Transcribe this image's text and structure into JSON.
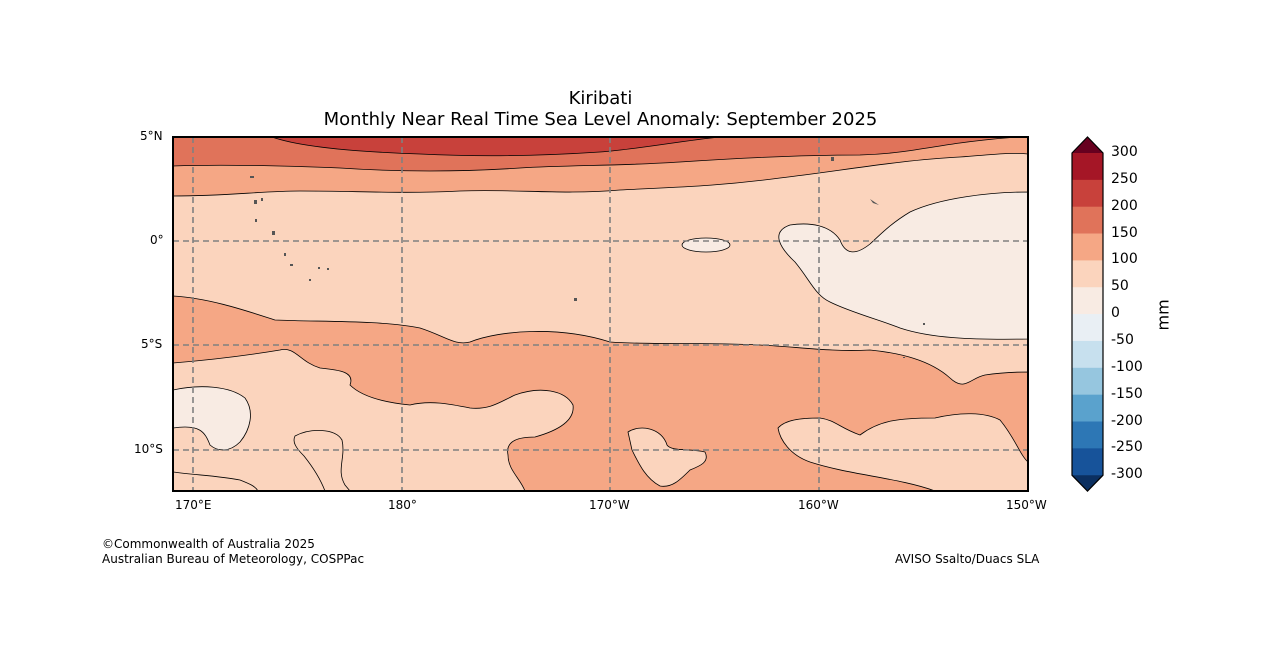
{
  "title": {
    "line1": "Kiribati",
    "line2": "Monthly Near Real Time Sea Level Anomaly: September 2025"
  },
  "axes": {
    "lat_labels": [
      "5°N",
      "0°",
      "5°S",
      "10°S"
    ],
    "lon_labels": [
      "170°E",
      "180°",
      "170°W",
      "160°W",
      "150°W"
    ]
  },
  "colorbar": {
    "unit": "mm",
    "ticks": [
      "300",
      "250",
      "200",
      "150",
      "100",
      "50",
      "0",
      "-50",
      "-100",
      "-150",
      "-200",
      "-250",
      "-300"
    ],
    "colors": [
      "#a51626",
      "#c8413b",
      "#e0735a",
      "#f5a785",
      "#fbd4bd",
      "#f8ebe3",
      "#e9eff4",
      "#c7e0ee",
      "#96c6df",
      "#5aa2cd",
      "#2d77b5",
      "#17539a"
    ],
    "max_extend_color": "#67001f",
    "min_extend_color": "#0b2f60"
  },
  "footer": {
    "copyright_line1": "©Commonwealth of Australia 2025",
    "copyright_line2": "Australian Bureau of Meteorology, COSPPac",
    "source": "AVISO Ssalto/Duacs SLA"
  }
}
